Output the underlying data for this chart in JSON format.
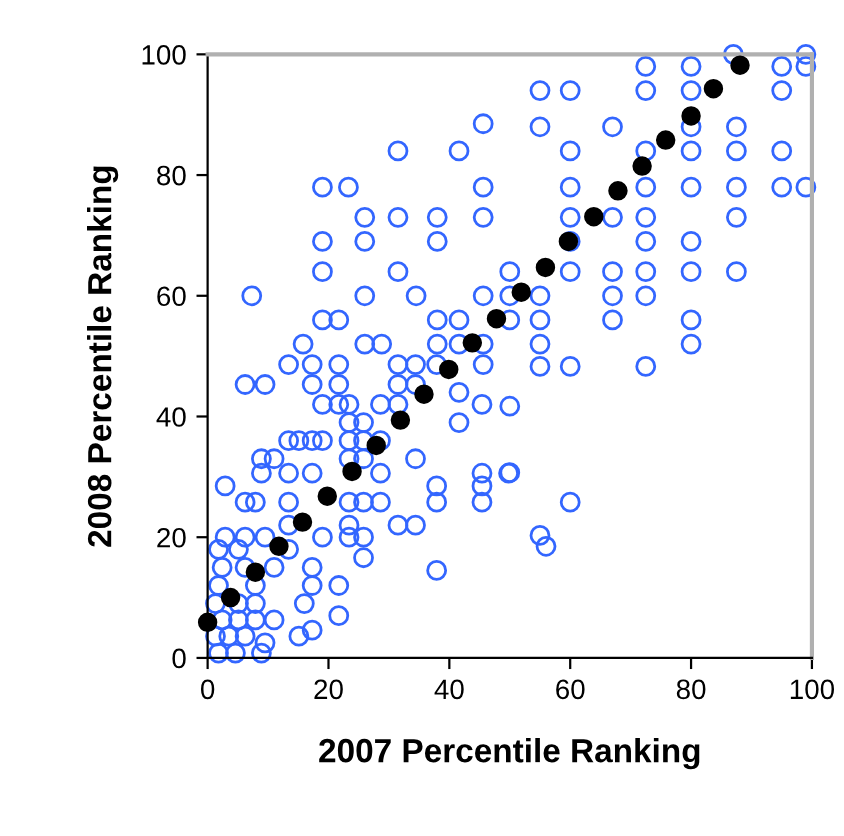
{
  "chart_data": {
    "type": "scatter",
    "xlabel": "2007 Percentile Ranking",
    "ylabel": "2008 Percentile Ranking",
    "xlim": [
      0,
      100
    ],
    "ylim": [
      0,
      100
    ],
    "xticks": [
      0,
      20,
      40,
      60,
      80,
      100
    ],
    "yticks": [
      0,
      20,
      40,
      60,
      80,
      100
    ],
    "grid": false,
    "marker": "circle",
    "series": [
      {
        "color": "#3366ff",
        "x": [
          87,
          99,
          72.5,
          80,
          95,
          99,
          55,
          60,
          72.5,
          80,
          95,
          55,
          67,
          80,
          87.5,
          60,
          72.5,
          80,
          87.5,
          95,
          60,
          72.5,
          80,
          87.5,
          95,
          99,
          60,
          67,
          72.5,
          87.5,
          60,
          72.5,
          80,
          50,
          60,
          67,
          72.5,
          80,
          87.5,
          50,
          55,
          67,
          72.5,
          50,
          55,
          67,
          80,
          55,
          80,
          55,
          60,
          72.5,
          50,
          50,
          60,
          55,
          56,
          45.6,
          31.5,
          41.6,
          19,
          23.3,
          45.6,
          26,
          31.5,
          38,
          45.6,
          19,
          26,
          38,
          19,
          31.5,
          7.3,
          26,
          34.5,
          45.6,
          19,
          21.7,
          38,
          41.6,
          15.8,
          26,
          28.8,
          38,
          41.6,
          45.6,
          13.4,
          17.3,
          21.7,
          31.5,
          34.4,
          37.9,
          6.2,
          9.5,
          17.3,
          21.7,
          31.5,
          34.4,
          19,
          21.7,
          23.4,
          28.6,
          31.5,
          45.4,
          23.4,
          25.8,
          41.6,
          13.4,
          15.1,
          17.3,
          19,
          23.4,
          25.8,
          28.6,
          8.9,
          11,
          23.4,
          25.8,
          34.4,
          8.9,
          13.4,
          17.3,
          28.6,
          45.4,
          49.8,
          2.9,
          45.4,
          37.9,
          6.2,
          7.9,
          13.4,
          23.4,
          25.8,
          28.6,
          37.9,
          45.4,
          13.4,
          23.4,
          31.5,
          34.4,
          2.9,
          6.2,
          9.5,
          19,
          23.4,
          25.8,
          1.8,
          5.1,
          13.4,
          25.8,
          2.4,
          6.2,
          11,
          17.3,
          37.9,
          1.8,
          7.9,
          17.3,
          21.7,
          1.3,
          5.1,
          7.9,
          16,
          21.7,
          2.4,
          5.1,
          7.9,
          11,
          17.3,
          1.3,
          3.5,
          6.2,
          9.5,
          15.1,
          1.8,
          4.6,
          8.9,
          41.6,
          45.6
        ],
        "values": [
          100,
          100,
          98,
          98,
          98,
          98,
          94,
          94,
          94,
          94,
          94,
          88,
          88,
          88,
          88,
          84,
          84,
          84,
          84,
          84,
          78,
          78,
          78,
          78,
          78,
          78,
          73,
          73,
          73,
          73,
          69,
          69,
          69,
          64,
          64,
          64,
          64,
          64,
          64,
          60,
          60,
          60,
          60,
          56,
          56,
          56,
          56,
          52,
          52,
          48.3,
          48.3,
          48.3,
          41.7,
          30.7,
          25.8,
          20.3,
          18.5,
          88.5,
          84,
          84,
          78,
          78,
          78,
          73,
          73,
          73,
          73,
          69,
          69,
          69,
          64,
          64,
          60,
          60,
          60,
          60,
          56,
          56,
          56,
          56,
          52,
          52,
          52,
          52,
          52,
          52,
          48.6,
          48.6,
          48.6,
          48.6,
          48.6,
          48.6,
          45.3,
          45.3,
          45.3,
          45.3,
          45.3,
          45.3,
          42,
          42,
          42,
          42,
          42,
          42,
          39,
          39,
          39,
          36,
          36,
          36,
          36,
          36,
          36,
          36,
          33,
          33,
          33,
          33,
          33,
          30.6,
          30.6,
          30.6,
          30.6,
          30.6,
          30.6,
          28.5,
          28.5,
          28.5,
          25.8,
          25.8,
          25.8,
          25.8,
          25.8,
          25.8,
          25.8,
          25.8,
          22,
          22,
          22,
          22,
          20,
          20,
          20,
          20,
          20,
          20,
          18,
          18,
          18,
          16.6,
          15,
          15,
          15,
          15,
          14.5,
          12,
          12,
          12,
          12,
          9,
          9,
          9,
          9,
          7,
          6.3,
          6.3,
          6.3,
          6.3,
          4.6,
          3.6,
          3.6,
          3.6,
          2.5,
          3.6,
          0.8,
          0.8,
          0.8,
          44,
          48.6
        ]
      },
      {
        "color": "#000000",
        "x": [
          0,
          3.8,
          7.9,
          11.8,
          15.7,
          19.8,
          23.9,
          27.9,
          31.9,
          35.8,
          39.9,
          43.8,
          47.8,
          51.9,
          55.9,
          59.7,
          63.9,
          67.9,
          71.9,
          75.8,
          80,
          83.7,
          88.1
        ],
        "values": [
          5.9,
          10,
          14.2,
          18.5,
          22.5,
          26.8,
          30.9,
          35.2,
          39.4,
          43.7,
          47.8,
          52.2,
          56.2,
          60.6,
          64.7,
          69,
          73.1,
          77.4,
          81.5,
          85.8,
          89.8,
          94.3,
          98.2
        ]
      }
    ]
  }
}
